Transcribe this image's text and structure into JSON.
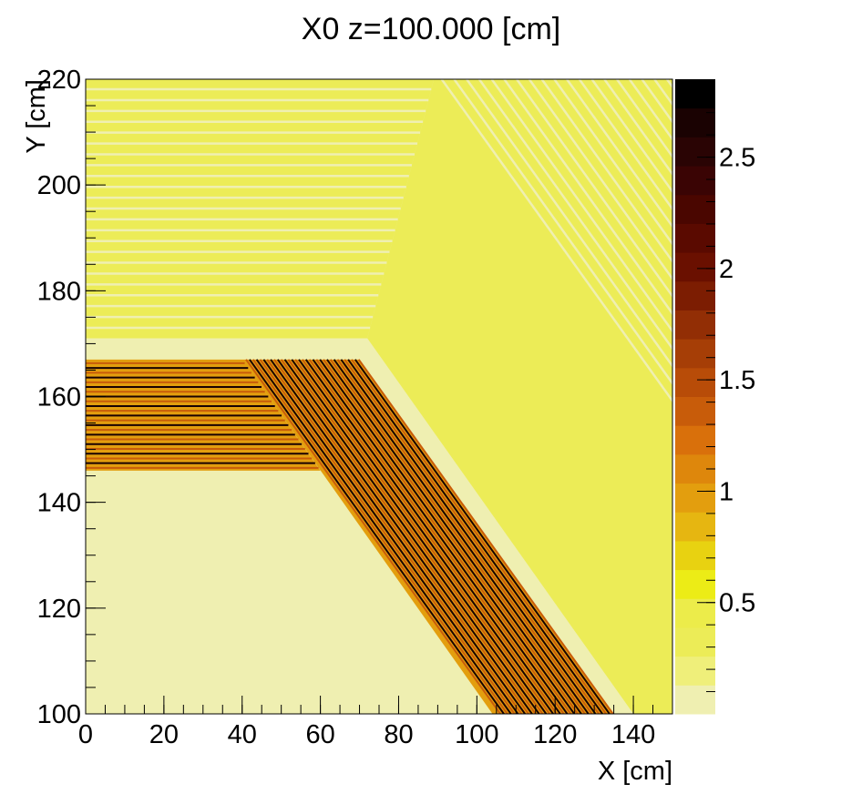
{
  "chart_data": {
    "type": "heatmap",
    "title": "X0 z=100.000 [cm]",
    "xlabel": "X [cm]",
    "ylabel": "Y [cm]",
    "xlim": [
      0,
      150
    ],
    "ylim": [
      100,
      220
    ],
    "x_ticks": [
      "0",
      "20",
      "40",
      "60",
      "80",
      "100",
      "120",
      "140"
    ],
    "y_ticks": [
      "100",
      "120",
      "140",
      "160",
      "180",
      "200",
      "220"
    ],
    "colorbar": {
      "range": [
        0,
        2.85
      ],
      "ticks": [
        "0.5",
        "1",
        "1.5",
        "2",
        "2.5"
      ],
      "tick_values": [
        0.5,
        1.0,
        1.5,
        2.0,
        2.5
      ],
      "colors": [
        "#efefb1",
        "#efef7a",
        "#ecec57",
        "#ecec4a",
        "#ecec16",
        "#e8d211",
        "#e6b611",
        "#e39e0e",
        "#de870c",
        "#d9700b",
        "#c85c0a",
        "#b84c08",
        "#a63e06",
        "#922e05",
        "#7c1d02",
        "#6a1000",
        "#5a0a00",
        "#4a0600",
        "#3a0404",
        "#2a0404",
        "#1a0202",
        "#000000"
      ]
    },
    "regions": {
      "background_value": 0.05,
      "upper_stripes_value": 0.3,
      "dense_band_value": 2.6,
      "dense_band_low_value": 1.0,
      "upper_boundary": [
        [
          0,
          171
        ],
        [
          72,
          171
        ],
        [
          89,
          220
        ]
      ],
      "dense_band_top_y": 167,
      "dense_band_bottom_y": 146,
      "dense_band_outer": [
        [
          70,
          167
        ],
        [
          135,
          100
        ]
      ],
      "dense_band_inner": [
        [
          40,
          167
        ],
        [
          104,
          100
        ]
      ],
      "dense_band_left_end": [
        [
          40,
          167
        ],
        [
          60,
          146
        ]
      ]
    }
  }
}
